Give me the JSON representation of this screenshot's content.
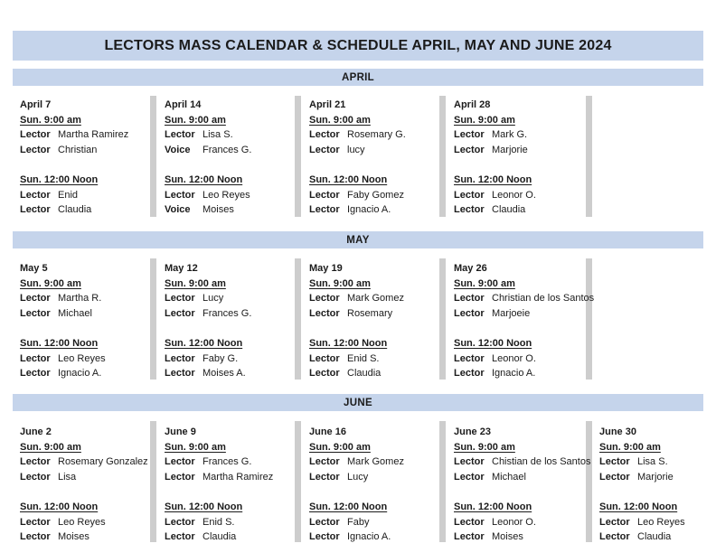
{
  "title": "LECTORS MASS CALENDAR & SCHEDULE APRIL, MAY AND JUNE 2024",
  "colors": {
    "header_bg": "#C5D4EB",
    "divider": "#CDCDCD",
    "text": "#1b1b1b"
  },
  "sections": [
    {
      "name": "APRIL",
      "days": [
        {
          "date": "April 7",
          "slots": [
            {
              "time": "Sun. 9:00 am",
              "assignments": [
                {
                  "role": "Lector",
                  "name": "Martha Ramirez"
                },
                {
                  "role": "Lector",
                  "name": "Christian"
                }
              ]
            },
            {
              "time": "Sun. 12:00 Noon",
              "assignments": [
                {
                  "role": "Lector",
                  "name": "Enid"
                },
                {
                  "role": "Lector",
                  "name": "Claudia"
                }
              ]
            }
          ]
        },
        {
          "date": "April 14",
          "slots": [
            {
              "time": "Sun. 9:00 am",
              "assignments": [
                {
                  "role": "Lector",
                  "name": "Lisa S."
                },
                {
                  "role": "Voice",
                  "name": "Frances G."
                }
              ]
            },
            {
              "time": "Sun. 12:00 Noon",
              "assignments": [
                {
                  "role": "Lector",
                  "name": "Leo Reyes"
                },
                {
                  "role": "Voice",
                  "name": "Moises"
                }
              ]
            }
          ]
        },
        {
          "date": "April 21",
          "slots": [
            {
              "time": "Sun. 9:00 am",
              "assignments": [
                {
                  "role": "Lector",
                  "name": "Rosemary G."
                },
                {
                  "role": "Lector",
                  "name": "lucy"
                }
              ]
            },
            {
              "time": "Sun. 12:00 Noon",
              "assignments": [
                {
                  "role": "Lector",
                  "name": "Faby Gomez"
                },
                {
                  "role": "Lector",
                  "name": "Ignacio A."
                }
              ]
            }
          ]
        },
        {
          "date": "April 28",
          "slots": [
            {
              "time": "Sun. 9:00 am",
              "assignments": [
                {
                  "role": "Lector",
                  "name": "Mark G."
                },
                {
                  "role": "Lector",
                  "name": "Marjorie"
                }
              ]
            },
            {
              "time": "Sun. 12:00 Noon",
              "assignments": [
                {
                  "role": "Lector",
                  "name": "Leonor O."
                },
                {
                  "role": "Lector",
                  "name": "Claudia"
                }
              ]
            }
          ]
        }
      ]
    },
    {
      "name": "MAY",
      "days": [
        {
          "date": "May 5",
          "slots": [
            {
              "time": "Sun. 9:00 am",
              "assignments": [
                {
                  "role": "Lector",
                  "name": "Martha R."
                },
                {
                  "role": "Lector",
                  "name": "Michael"
                }
              ]
            },
            {
              "time": "Sun. 12:00 Noon",
              "assignments": [
                {
                  "role": "Lector",
                  "name": "Leo Reyes"
                },
                {
                  "role": "Lector",
                  "name": "Ignacio A."
                }
              ]
            }
          ]
        },
        {
          "date": "May 12",
          "slots": [
            {
              "time": "Sun. 9:00 am",
              "assignments": [
                {
                  "role": "Lector",
                  "name": "Lucy"
                },
                {
                  "role": "Lector",
                  "name": "Frances G."
                }
              ]
            },
            {
              "time": "Sun. 12:00 Noon",
              "assignments": [
                {
                  "role": "Lector",
                  "name": "Faby G."
                },
                {
                  "role": "Lector",
                  "name": "Moises A."
                }
              ]
            }
          ]
        },
        {
          "date": "May 19",
          "slots": [
            {
              "time": "Sun. 9:00 am",
              "assignments": [
                {
                  "role": "Lector",
                  "name": "Mark Gomez"
                },
                {
                  "role": "Lector",
                  "name": "Rosemary"
                }
              ]
            },
            {
              "time": "Sun. 12:00 Noon",
              "assignments": [
                {
                  "role": "Lector",
                  "name": "Enid S."
                },
                {
                  "role": "Lector",
                  "name": "Claudia"
                }
              ]
            }
          ]
        },
        {
          "date": "May 26",
          "slots": [
            {
              "time": "Sun. 9:00 am",
              "assignments": [
                {
                  "role": "Lector",
                  "name": "Christian de los Santos"
                },
                {
                  "role": "Lector",
                  "name": "Marjoeie"
                }
              ]
            },
            {
              "time": "Sun. 12:00 Noon",
              "assignments": [
                {
                  "role": "Lector",
                  "name": "Leonor O."
                },
                {
                  "role": "Lector",
                  "name": "Ignacio A."
                }
              ]
            }
          ]
        }
      ]
    },
    {
      "name": "JUNE",
      "days": [
        {
          "date": "June 2",
          "slots": [
            {
              "time": "Sun. 9:00 am",
              "assignments": [
                {
                  "role": "Lector",
                  "name": "Rosemary Gonzalez"
                },
                {
                  "role": "Lector",
                  "name": "Lisa"
                }
              ]
            },
            {
              "time": "Sun. 12:00 Noon",
              "assignments": [
                {
                  "role": "Lector",
                  "name": "Leo Reyes"
                },
                {
                  "role": "Lector",
                  "name": "Moises"
                }
              ]
            }
          ]
        },
        {
          "date": "June 9",
          "slots": [
            {
              "time": "Sun. 9:00 am",
              "assignments": [
                {
                  "role": "Lector",
                  "name": "Frances G."
                },
                {
                  "role": "Lector",
                  "name": "Martha Ramirez"
                }
              ]
            },
            {
              "time": "Sun. 12:00 Noon",
              "assignments": [
                {
                  "role": "Lector",
                  "name": "Enid S."
                },
                {
                  "role": "Lector",
                  "name": "Claudia"
                }
              ]
            }
          ]
        },
        {
          "date": "June 16",
          "slots": [
            {
              "time": "Sun. 9:00 am",
              "assignments": [
                {
                  "role": "Lector",
                  "name": "Mark Gomez"
                },
                {
                  "role": "Lector",
                  "name": "Lucy"
                }
              ]
            },
            {
              "time": "Sun. 12:00 Noon",
              "assignments": [
                {
                  "role": "Lector",
                  "name": "Faby"
                },
                {
                  "role": "Lector",
                  "name": "Ignacio A."
                }
              ]
            }
          ]
        },
        {
          "date": "June 23",
          "slots": [
            {
              "time": "Sun. 9:00 am",
              "assignments": [
                {
                  "role": "Lector",
                  "name": "Chistian de los Santos"
                },
                {
                  "role": "Lector",
                  "name": "Michael"
                }
              ]
            },
            {
              "time": "Sun. 12:00 Noon",
              "assignments": [
                {
                  "role": "Lector",
                  "name": "Leonor O."
                },
                {
                  "role": "Lector",
                  "name": "Moises"
                }
              ]
            }
          ]
        },
        {
          "date": "June 30",
          "slots": [
            {
              "time": "Sun. 9:00 am",
              "assignments": [
                {
                  "role": "Lector",
                  "name": "Lisa S."
                },
                {
                  "role": "Lector",
                  "name": "Marjorie"
                }
              ]
            },
            {
              "time": "Sun. 12:00 Noon",
              "assignments": [
                {
                  "role": "Lector",
                  "name": "Leo Reyes"
                },
                {
                  "role": "Lector",
                  "name": "Claudia"
                }
              ]
            }
          ]
        }
      ]
    }
  ]
}
